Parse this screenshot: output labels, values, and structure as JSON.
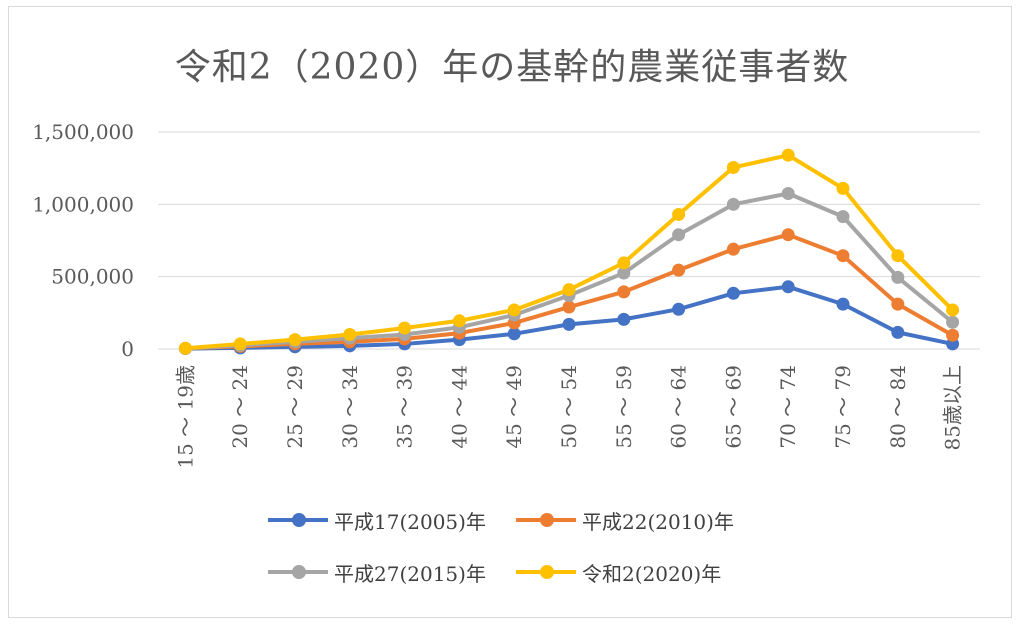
{
  "chart_data": {
    "type": "line",
    "title": "令和2（2020）年の基幹的農業従事者数",
    "xlabel": "",
    "ylabel": "",
    "ylim": [
      0,
      1500000
    ],
    "yticks": [
      0,
      500000,
      1000000,
      1500000
    ],
    "ytick_labels": [
      "0",
      "500,000",
      "1,000,000",
      "1,500,000"
    ],
    "categories": [
      "15 ～ 19歳",
      "20 ～ 24",
      "25 ～ 29",
      "30 ～ 34",
      "35 ～ 39",
      "40 ～ 44",
      "45 ～ 49",
      "50 ～ 54",
      "55 ～ 59",
      "60 ～ 64",
      "65 ～ 69",
      "70 ～ 74",
      "75 ～ 79",
      "80 ～ 84",
      "85歳以上"
    ],
    "legend_position": "bottom",
    "grid": true,
    "series": [
      {
        "name": "平成17(2005)年",
        "color": "#4472c4",
        "values": [
          3000,
          8000,
          15000,
          22000,
          35000,
          65000,
          105000,
          170000,
          205000,
          275000,
          385000,
          430000,
          310000,
          115000,
          35000
        ]
      },
      {
        "name": "平成22(2010)年",
        "color": "#ed7d31",
        "values": [
          4000,
          18000,
          35000,
          50000,
          70000,
          110000,
          180000,
          290000,
          395000,
          545000,
          690000,
          790000,
          645000,
          310000,
          95000
        ]
      },
      {
        "name": "平成27(2015)年",
        "color": "#a5a5a5",
        "values": [
          4000,
          25000,
          50000,
          75000,
          100000,
          150000,
          235000,
          370000,
          525000,
          790000,
          1000000,
          1075000,
          915000,
          495000,
          185000
        ]
      },
      {
        "name": "令和2(2020)年",
        "color": "#ffc000",
        "values": [
          5000,
          35000,
          65000,
          100000,
          145000,
          195000,
          270000,
          410000,
          595000,
          930000,
          1255000,
          1340000,
          1110000,
          645000,
          270000
        ]
      }
    ]
  }
}
